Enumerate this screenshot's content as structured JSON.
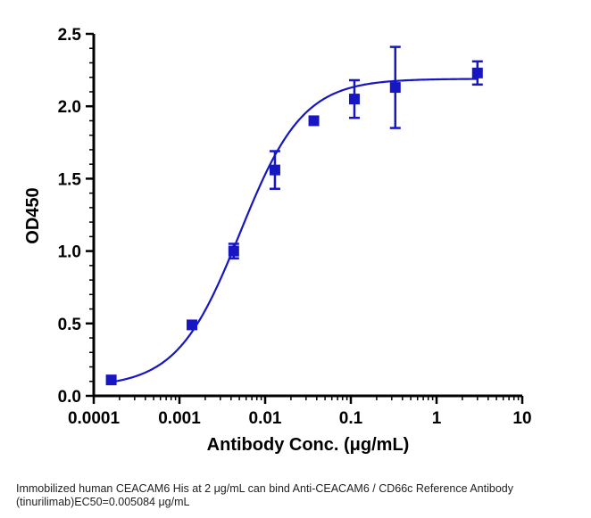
{
  "chart_data": {
    "type": "scatter",
    "title": "",
    "xlabel": "Antibody Conc. (μg/mL)",
    "ylabel": "OD450",
    "xscale": "log",
    "xlim": [
      0.0001,
      10
    ],
    "ylim": [
      0,
      2.5
    ],
    "x_ticks": [
      "0.0001",
      "0.001",
      "0.01",
      "0.1",
      "1",
      "10"
    ],
    "y_ticks": [
      "0.0",
      "0.5",
      "1.0",
      "1.5",
      "2.0",
      "2.5"
    ],
    "grid": false,
    "legend": "none",
    "series": [
      {
        "points": [
          {
            "x": 0.00016,
            "y": 0.11,
            "err": 0.01
          },
          {
            "x": 0.0014,
            "y": 0.49,
            "err": 0.01
          },
          {
            "x": 0.0043,
            "y": 1.0,
            "err": 0.05
          },
          {
            "x": 0.013,
            "y": 1.56,
            "err": 0.13
          },
          {
            "x": 0.037,
            "y": 1.9,
            "err": 0.01
          },
          {
            "x": 0.11,
            "y": 2.05,
            "err": 0.13
          },
          {
            "x": 0.33,
            "y": 2.13,
            "err": 0.28
          },
          {
            "x": 3.0,
            "y": 2.23,
            "err": 0.08
          }
        ]
      }
    ],
    "fit": {
      "model": "4PL",
      "bottom": 0.06,
      "top": 2.19,
      "ec50": 0.005084,
      "hill": 1.18,
      "x_range": [
        0.00016,
        3.0
      ]
    },
    "colors": {
      "series": "#1616c2",
      "axis": "#000000"
    }
  },
  "caption": {
    "line1": "Immobilized human CEACAM6 His at 2  μg/mL can bind  Anti-CEACAM6 / CD66c Reference Antibody",
    "line2": "(tinurilimab)EC50=0.005084 μg/mL"
  }
}
